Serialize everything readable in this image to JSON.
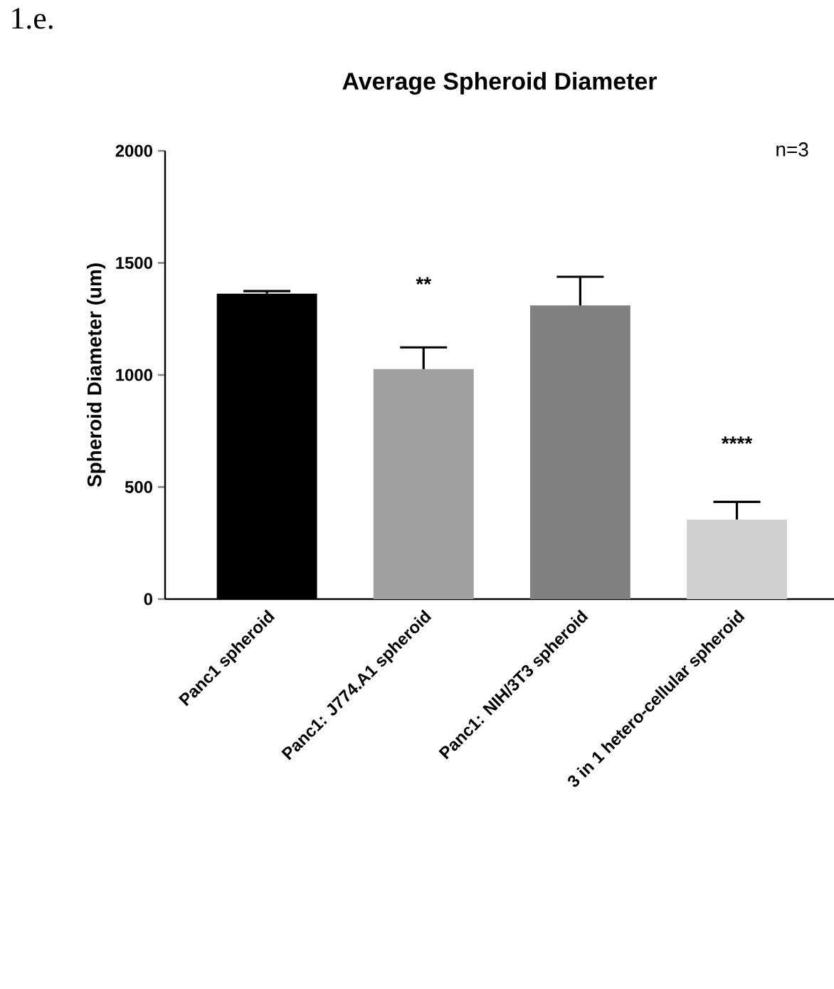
{
  "chart_data": {
    "type": "bar",
    "title": "Average Spheroid Diameter",
    "ylabel": "Spheroid Diameter (um)",
    "categories": [
      "Panc1 spheroid",
      "Panc1: J774.A1 spheroid",
      "Panc1: NIH/3T3 spheroid",
      "3 in 1 hetero-cellular spheroid"
    ],
    "values": [
      1363,
      1026,
      1310,
      355
    ],
    "colors": [
      "#000000",
      "#a0a0a0",
      "#808080",
      "#d0d0d0"
    ],
    "errors": [
      [
        1363,
        1374
      ],
      [
        1026,
        1123
      ],
      [
        1310,
        1438
      ],
      [
        355,
        434
      ]
    ],
    "ylim": [
      0,
      2000
    ],
    "yticks": [
      0,
      500,
      1000,
      1500,
      2000
    ],
    "annotations": [
      "1.e.",
      "n=3",
      "**",
      "****"
    ]
  }
}
